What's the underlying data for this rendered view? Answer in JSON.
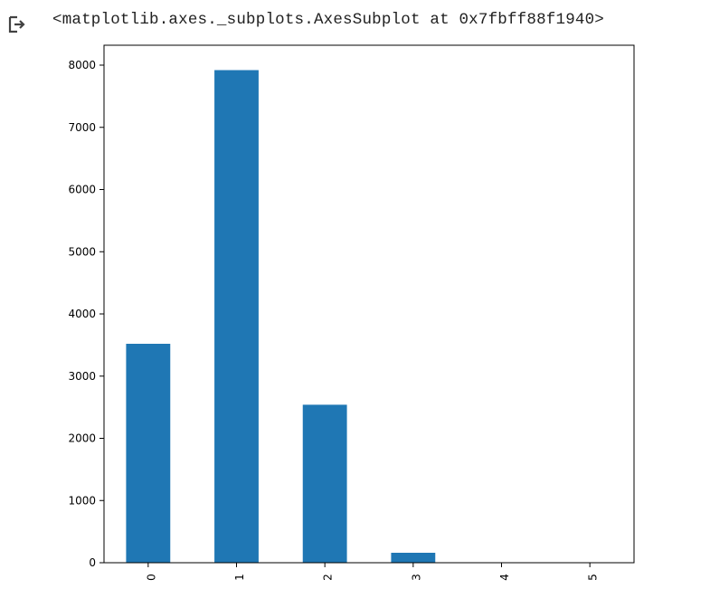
{
  "output": {
    "icon": "output-arrow-icon",
    "repr": "<matplotlib.axes._subplots.AxesSubplot at 0x7fbff88f1940>"
  },
  "chart_data": {
    "type": "bar",
    "categories": [
      "0",
      "1",
      "2",
      "3",
      "4",
      "5"
    ],
    "values": [
      3520,
      7920,
      2540,
      160,
      0,
      0
    ],
    "title": "",
    "xlabel": "",
    "ylabel": "",
    "ylim": [
      0,
      8320
    ],
    "yticks": [
      0,
      1000,
      2000,
      3000,
      4000,
      5000,
      6000,
      7000,
      8000
    ],
    "bar_color": "#1f77b4",
    "grid": false,
    "x_tick_rotation": 90
  }
}
